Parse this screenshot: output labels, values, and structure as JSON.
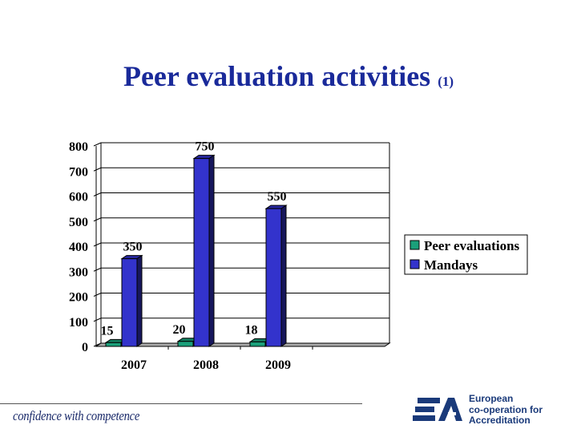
{
  "slide": {
    "title": "Peer evaluation activities",
    "title_suffix": "(1)",
    "tagline": "confidence with competence",
    "logo": {
      "text": "EA",
      "line1": "European",
      "line2": "co-operation for",
      "line3": "Accreditation"
    }
  },
  "chart_data": {
    "type": "bar",
    "title": "Peer evaluation activities (1)",
    "categories": [
      "2007",
      "2008",
      "2009"
    ],
    "series": [
      {
        "name": "Peer evaluations",
        "values": [
          15,
          20,
          18
        ],
        "color": "#1aa07a"
      },
      {
        "name": "Mandays",
        "values": [
          350,
          750,
          550
        ],
        "color": "#3333cc"
      }
    ],
    "ylim": [
      0,
      800
    ],
    "yticks": [
      "0",
      "100",
      "200",
      "300",
      "400",
      "500",
      "600",
      "700",
      "800"
    ],
    "grid": true,
    "legend": "right",
    "xlabel": "",
    "ylabel": ""
  }
}
